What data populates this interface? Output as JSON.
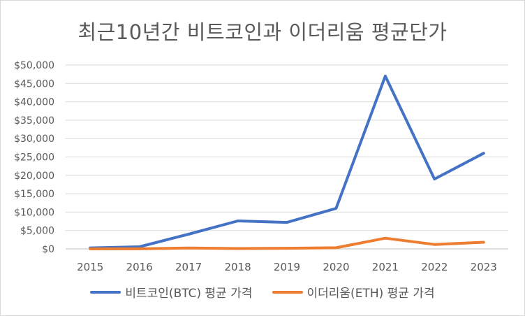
{
  "chart_data": {
    "type": "line",
    "title": "최근10년간 비트코인과 이더리움 평균단가",
    "categories": [
      "2015",
      "2016",
      "2017",
      "2018",
      "2019",
      "2020",
      "2021",
      "2022",
      "2023"
    ],
    "ylim": [
      0,
      50000
    ],
    "yticks": [
      "$0",
      "$5,000",
      "$10,000",
      "$15,000",
      "$20,000",
      "$25,000",
      "$30,000",
      "$35,000",
      "$40,000",
      "$45,000",
      "$50,000"
    ],
    "grid": true,
    "legend_position": "bottom",
    "series": [
      {
        "name": "비트코인(BTC) 평균 가격",
        "color": "#4472c4",
        "values": [
          270,
          570,
          4000,
          7600,
          7200,
          11000,
          47000,
          19000,
          26000
        ]
      },
      {
        "name": "이더리움(ETH) 평균 가격",
        "color": "#ed7d31",
        "values": [
          1,
          11,
          230,
          100,
          180,
          300,
          2900,
          1200,
          1800
        ]
      }
    ]
  }
}
